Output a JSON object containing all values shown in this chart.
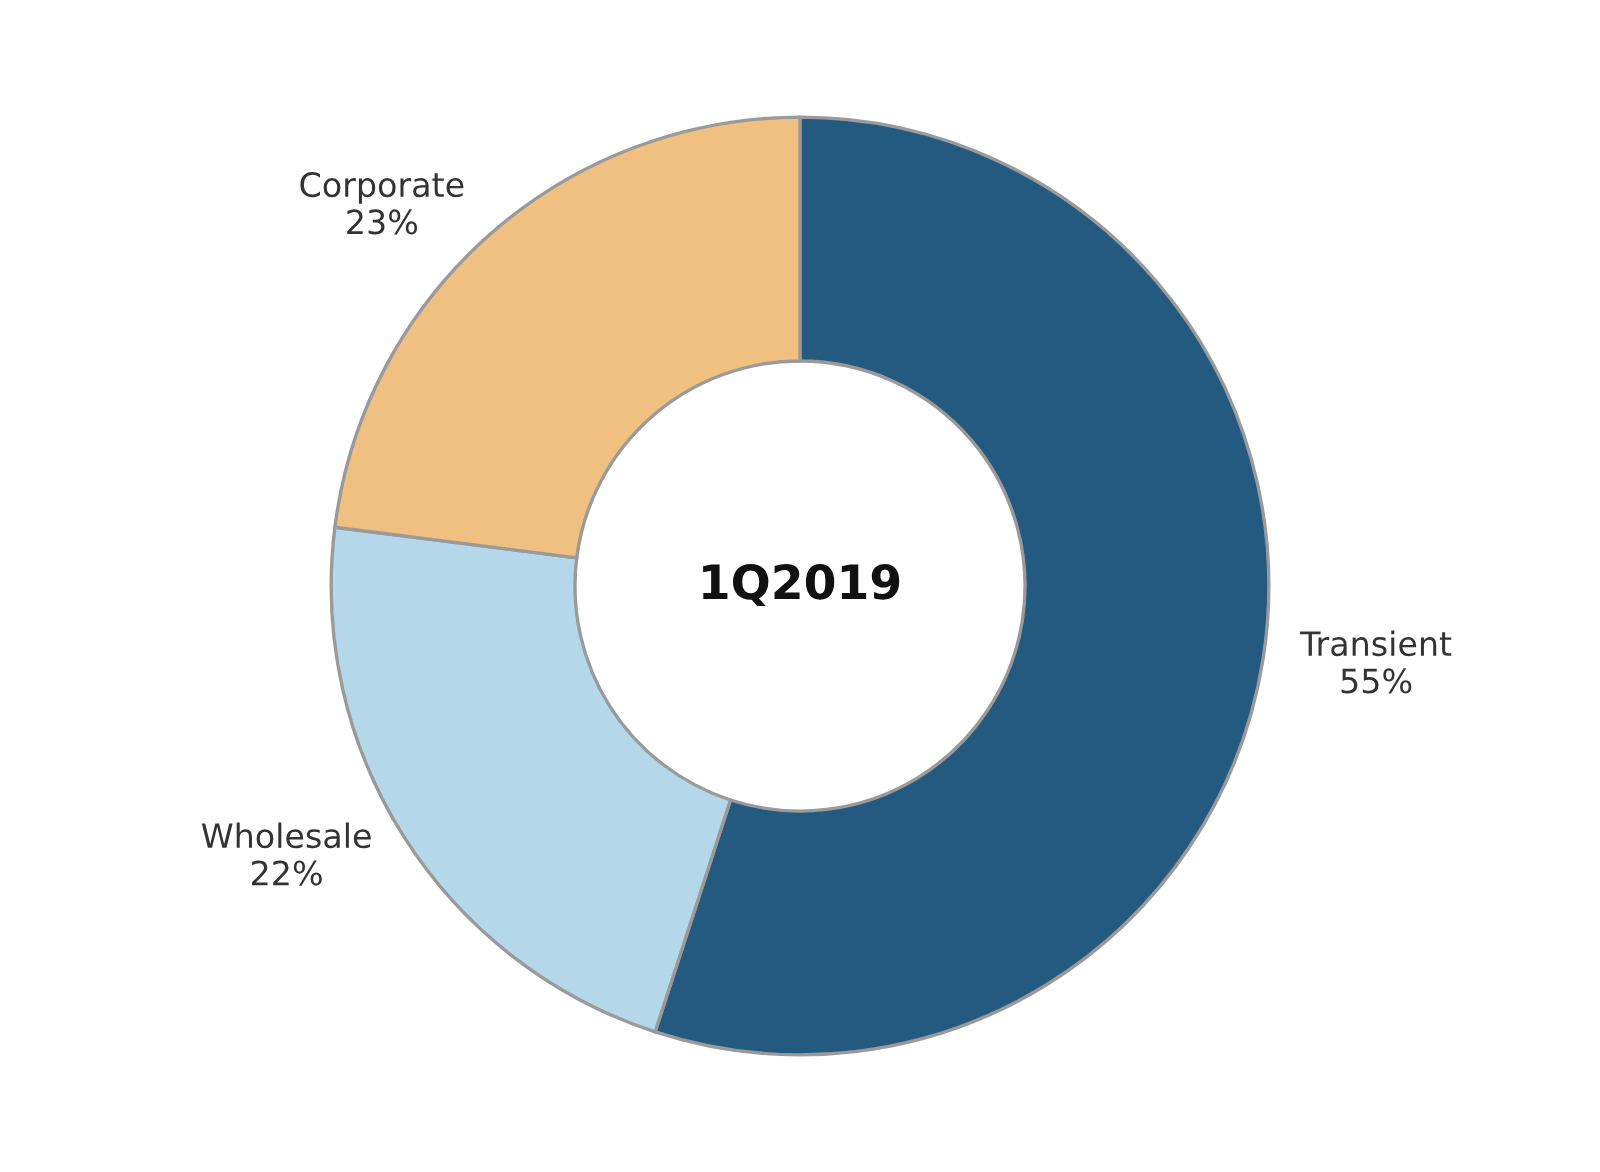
{
  "chart_data": {
    "type": "donut",
    "title": "1Q2019",
    "categories": [
      "Transient",
      "Wholesale",
      "Corporate"
    ],
    "values": [
      55,
      22,
      23
    ],
    "value_labels": [
      "55%",
      "22%",
      "23%"
    ],
    "colors": [
      "#245a80",
      "#b4d8ea",
      "#f0c080"
    ],
    "legend": false
  }
}
